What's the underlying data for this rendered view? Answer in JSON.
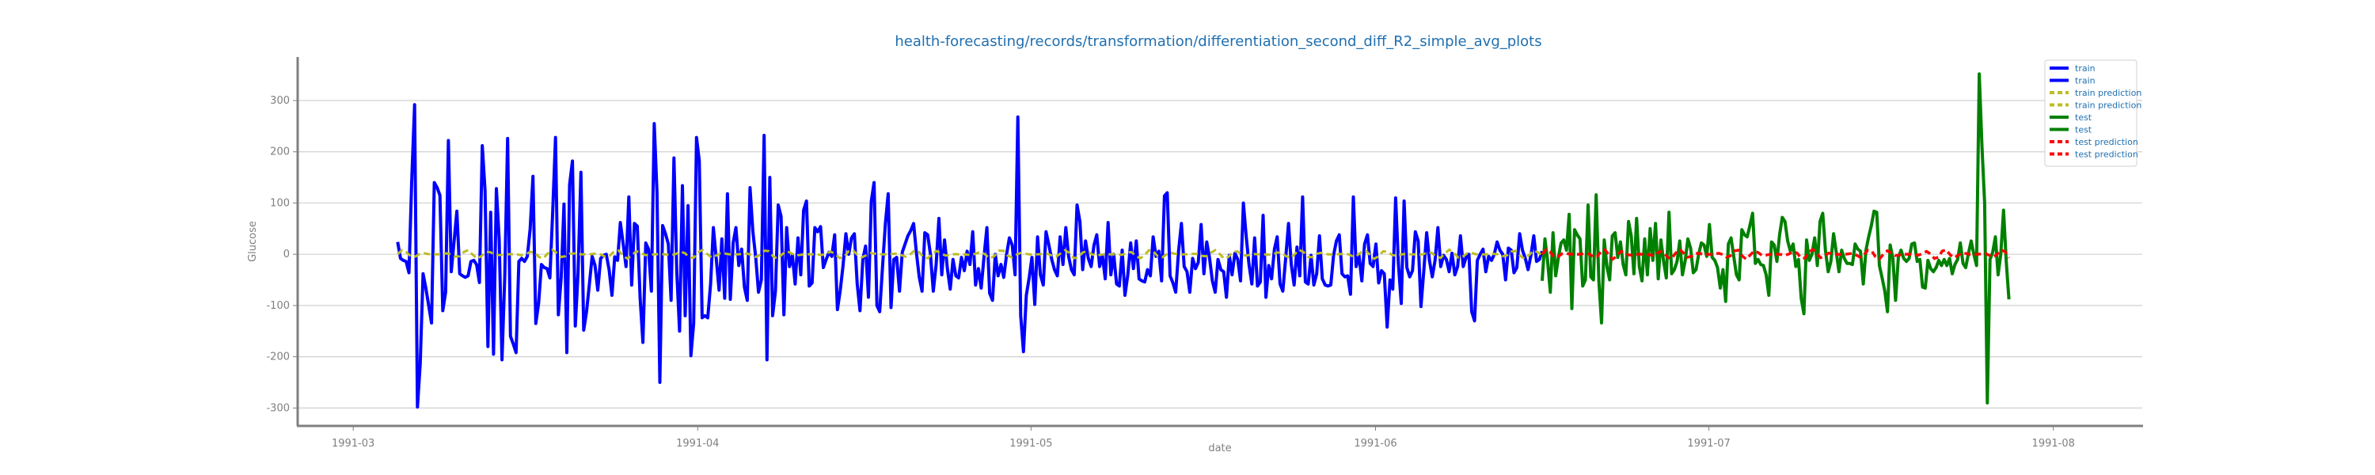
{
  "chart_data": {
    "type": "line",
    "title": "health-forecasting/records/transformation/differentiation_second_diff_R2_simple_avg_plots",
    "xlabel": "date",
    "ylabel": "Glucose",
    "x_ticks": [
      "1991-03",
      "1991-04",
      "1991-05",
      "1991-06",
      "1991-07",
      "1991-08"
    ],
    "y_ticks": [
      -300,
      -200,
      -100,
      0,
      100,
      200,
      300
    ],
    "ylim": [
      -335,
      385
    ],
    "xlim": [
      "1991-02-24",
      "1991-08-09"
    ],
    "grid": true,
    "legend_position": "top-right",
    "colors": {
      "train": "#0000ff",
      "train_prediction": "#bcbd22",
      "test": "#008000",
      "test_prediction": "#ff0000",
      "title": "#1f6fb0",
      "axis": "#808080",
      "grid": "#d0d0d0"
    },
    "legend": [
      "train",
      "train",
      "train prediction",
      "train prediction",
      "test",
      "test",
      "test prediction",
      "test prediction"
    ],
    "train": {
      "start_date": "1991-03-05",
      "end_date": "1991-06-16",
      "values": [
        24,
        -8,
        -12,
        -14,
        -36,
        145,
        292,
        -298,
        -214,
        -38,
        -66,
        -100,
        -134,
        140,
        130,
        115,
        -110,
        -74,
        222,
        -34,
        24,
        84,
        -38,
        -42,
        -45,
        -42,
        -14,
        -12,
        -20,
        -55,
        212,
        124,
        -180,
        82,
        -195,
        128,
        30,
        -206,
        -44,
        226,
        -160,
        -175,
        -192,
        -14,
        -8,
        -14,
        -4,
        50,
        152,
        -135,
        -95,
        -20,
        -26,
        -28,
        -46,
        85,
        228,
        -118,
        -45,
        98,
        -192,
        136,
        182,
        -140,
        -36,
        160,
        -148,
        -112,
        -58,
        -4,
        -22,
        -70,
        -8,
        -2,
        0,
        -30,
        -80,
        -5,
        -12,
        62,
        20,
        -24,
        112,
        -60,
        60,
        55,
        -86,
        -172,
        22,
        10,
        -72,
        255,
        120,
        -250,
        56,
        40,
        20,
        -90,
        188,
        -35,
        -150,
        134,
        -120,
        95,
        -198,
        -135,
        228,
        182,
        -124,
        -120,
        -124,
        -58,
        52,
        -8,
        -70,
        30,
        -86,
        118,
        -88,
        22,
        52,
        -22,
        10,
        -64,
        -90,
        130,
        44,
        -6,
        -74,
        -50,
        232,
        -206,
        150,
        -120,
        -72,
        96,
        74,
        -118,
        52,
        -24,
        -2,
        -58,
        32,
        -40,
        86,
        104,
        -62,
        -56,
        52,
        44,
        54,
        -26,
        -10,
        4,
        -4,
        38,
        -108,
        -70,
        -22,
        40,
        0,
        32,
        40,
        -58,
        -110,
        -10,
        16,
        -84,
        104,
        140,
        -100,
        -112,
        -24,
        60,
        118,
        -104,
        -10,
        -6,
        -72,
        4,
        20,
        36,
        46,
        60,
        4,
        -44,
        -72,
        42,
        38,
        0,
        -72,
        -20,
        70,
        -40,
        28,
        -28,
        -68,
        -10,
        -42,
        -46,
        -6,
        -32,
        6,
        -20,
        44,
        -60,
        -28,
        -66,
        -4,
        52,
        -76,
        -90,
        0,
        -42,
        -20,
        -45,
        0,
        32,
        18,
        -40,
        268,
        -120,
        -190,
        -80,
        -46,
        -6,
        -98,
        34,
        -40,
        -60,
        44,
        18,
        -10,
        -30,
        -42,
        34,
        -20,
        52,
        -4,
        -30,
        -40,
        96,
        64,
        -30,
        26,
        -8,
        -24,
        18,
        38,
        -24,
        -2,
        -48,
        62,
        -40,
        0,
        -58,
        -62,
        8,
        -80,
        -40,
        22,
        -28,
        26,
        -48,
        -52,
        -54,
        -30,
        -42,
        34,
        -4,
        6,
        -52,
        114,
        120,
        -42,
        -56,
        -74,
        6,
        60,
        -24,
        -34,
        -74,
        -8,
        -28,
        -16,
        58,
        -38,
        24,
        -8,
        -52,
        -74,
        -10,
        -30,
        -34,
        -84,
        -2,
        -40,
        2,
        -10,
        -52,
        100,
        34,
        -20,
        -58,
        32,
        -62,
        -54,
        76,
        -84,
        -22,
        -48,
        10,
        34,
        -58,
        -72,
        -8,
        60,
        -20,
        -60,
        14,
        -42,
        112,
        -54,
        -58,
        -2,
        -60,
        -38,
        36,
        -48,
        -60,
        -62,
        -60,
        -2,
        26,
        38,
        -38,
        -44,
        -42,
        -78,
        112,
        -24,
        -2,
        -52,
        20,
        38,
        -18,
        -24,
        20,
        -56,
        -32,
        -38,
        -142,
        -50,
        -68,
        110,
        -18,
        -96,
        104,
        -26,
        -44,
        -32,
        44,
        26,
        -102,
        -32,
        42,
        -12,
        -44,
        -12,
        52,
        -24,
        -2,
        -10,
        -34,
        2,
        -40,
        -24,
        36,
        -24,
        -6,
        0,
        -112,
        -130,
        -12,
        0,
        10,
        -34,
        -4,
        -12,
        0,
        24,
        8,
        0,
        -50,
        12,
        8,
        -36,
        -26,
        40,
        8,
        -8,
        -30,
        -2,
        36,
        -14,
        -10,
        6
      ]
    },
    "test": {
      "start_date": "1991-06-16",
      "end_date": "1991-07-28",
      "values": [
        -52,
        30,
        -14,
        -74,
        42,
        -42,
        -6,
        22,
        28,
        8,
        78,
        -106,
        48,
        38,
        30,
        -62,
        -50,
        96,
        -44,
        -50,
        116,
        -52,
        -134,
        28,
        -24,
        -50,
        36,
        42,
        -6,
        24,
        -20,
        -40,
        64,
        36,
        -38,
        70,
        -24,
        -52,
        30,
        -40,
        50,
        -12,
        60,
        -48,
        28,
        -14,
        -46,
        82,
        -38,
        -30,
        -14,
        26,
        -40,
        -12,
        30,
        12,
        -36,
        -30,
        0,
        22,
        18,
        -4,
        58,
        -6,
        -12,
        -26,
        -66,
        -30,
        -92,
        20,
        32,
        -4,
        -40,
        -50,
        48,
        38,
        34,
        56,
        80,
        -18,
        -10,
        -20,
        -22,
        -40,
        -80,
        24,
        18,
        -14,
        38,
        72,
        64,
        26,
        6,
        20,
        -24,
        -10,
        -86,
        -116,
        28,
        -12,
        0,
        32,
        -22,
        64,
        80,
        8,
        -34,
        -14,
        40,
        4,
        -34,
        8,
        -8,
        -18,
        -18,
        -20,
        20,
        10,
        6,
        -58,
        8,
        34,
        56,
        84,
        82,
        -22,
        -46,
        -72,
        -112,
        18,
        -8,
        -90,
        -6,
        8,
        -8,
        -14,
        -8,
        20,
        22,
        -14,
        -10,
        -64,
        -66,
        -12,
        -28,
        -34,
        -26,
        -12,
        -22,
        -10,
        -22,
        -8,
        -38,
        -20,
        -10,
        22,
        -18,
        -26,
        2,
        26,
        0,
        -22,
        352,
        212,
        100,
        -290,
        -10,
        4,
        34,
        -40,
        0,
        86,
        -14,
        -88
      ]
    },
    "train_prediction_band": 9,
    "test_prediction_band": 10
  }
}
